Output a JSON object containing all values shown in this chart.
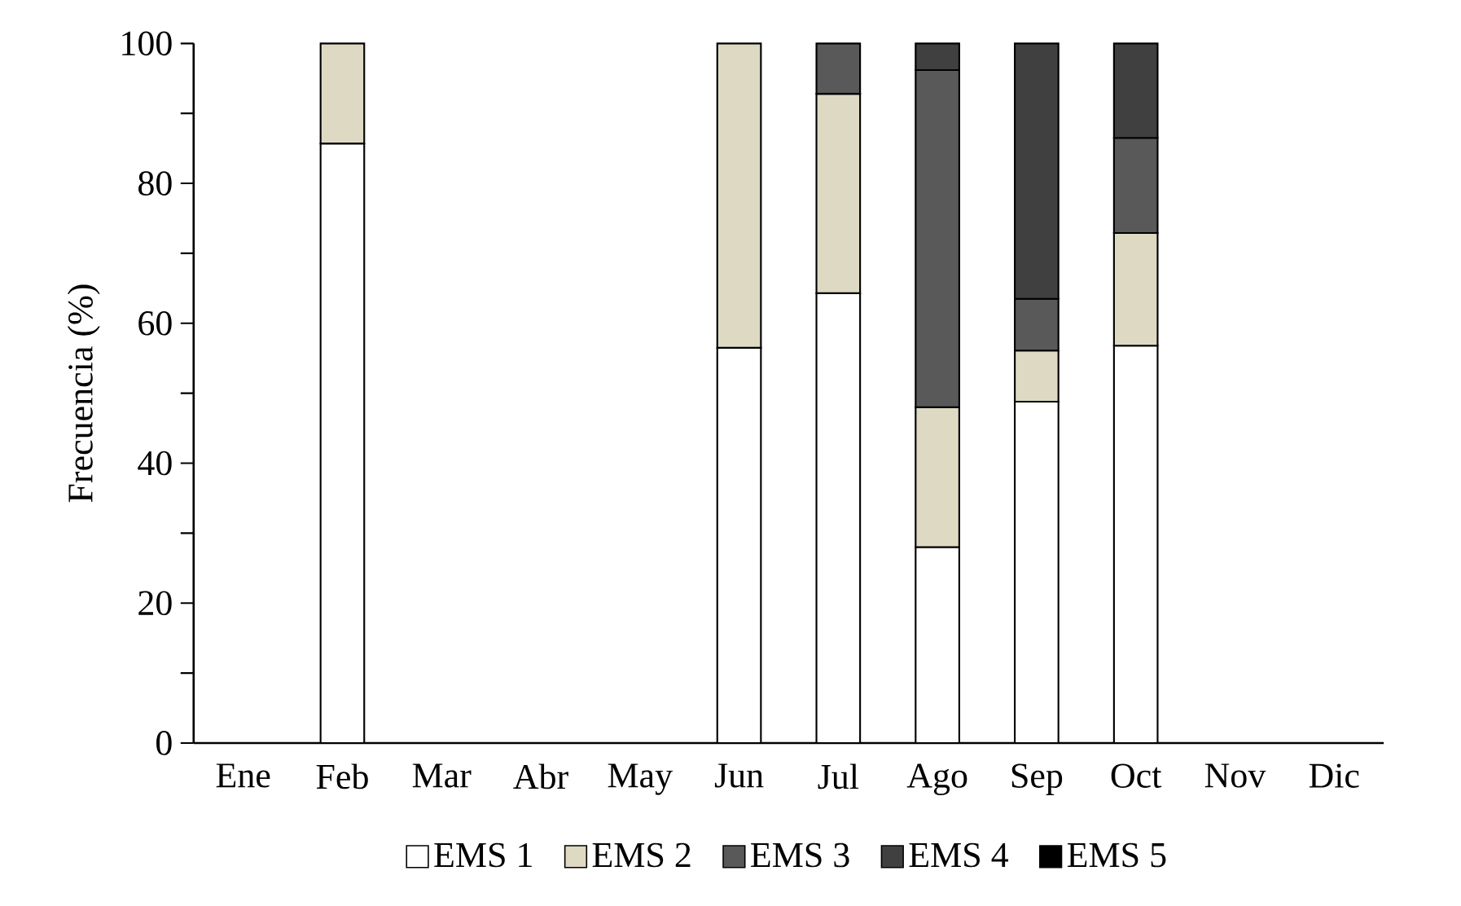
{
  "chart_data": {
    "type": "bar",
    "stacked": true,
    "ylabel": "Frecuencia (%)",
    "categories": [
      "Ene",
      "Feb",
      "Mar",
      "Abr",
      "May",
      "Jun",
      "Jul",
      "Ago",
      "Sep",
      "Oct",
      "Nov",
      "Dic"
    ],
    "series": [
      {
        "name": "EMS 1",
        "color": "#ffffff",
        "values": [
          null,
          85.7,
          null,
          null,
          null,
          56.5,
          64.3,
          28,
          48.8,
          56.8,
          null,
          null
        ]
      },
      {
        "name": "EMS 2",
        "color": "#ddd9c3",
        "values": [
          null,
          14.3,
          null,
          null,
          null,
          43.5,
          28.5,
          20,
          7.3,
          16.1,
          null,
          null
        ]
      },
      {
        "name": "EMS 3",
        "color": "#595959",
        "values": [
          null,
          null,
          null,
          null,
          null,
          null,
          7.2,
          48.2,
          7.4,
          13.6,
          null,
          null
        ]
      },
      {
        "name": "EMS 4",
        "color": "#404040",
        "values": [
          null,
          null,
          null,
          null,
          null,
          null,
          null,
          3.8,
          36.5,
          13.5,
          null,
          null
        ]
      },
      {
        "name": "EMS 5",
        "color": "#000000",
        "values": [
          null,
          null,
          null,
          null,
          null,
          null,
          null,
          null,
          null,
          null,
          null,
          null
        ]
      }
    ],
    "ylim": [
      0,
      100
    ],
    "yticks": [
      0,
      {
        "value": 10,
        "label": null
      },
      20,
      {
        "value": 30,
        "label": null
      },
      40,
      {
        "value": 50,
        "label": null
      },
      60,
      {
        "value": 70,
        "label": null
      },
      80,
      {
        "value": 90,
        "label": null
      },
      100
    ],
    "legend": "bottom",
    "grid": false
  }
}
